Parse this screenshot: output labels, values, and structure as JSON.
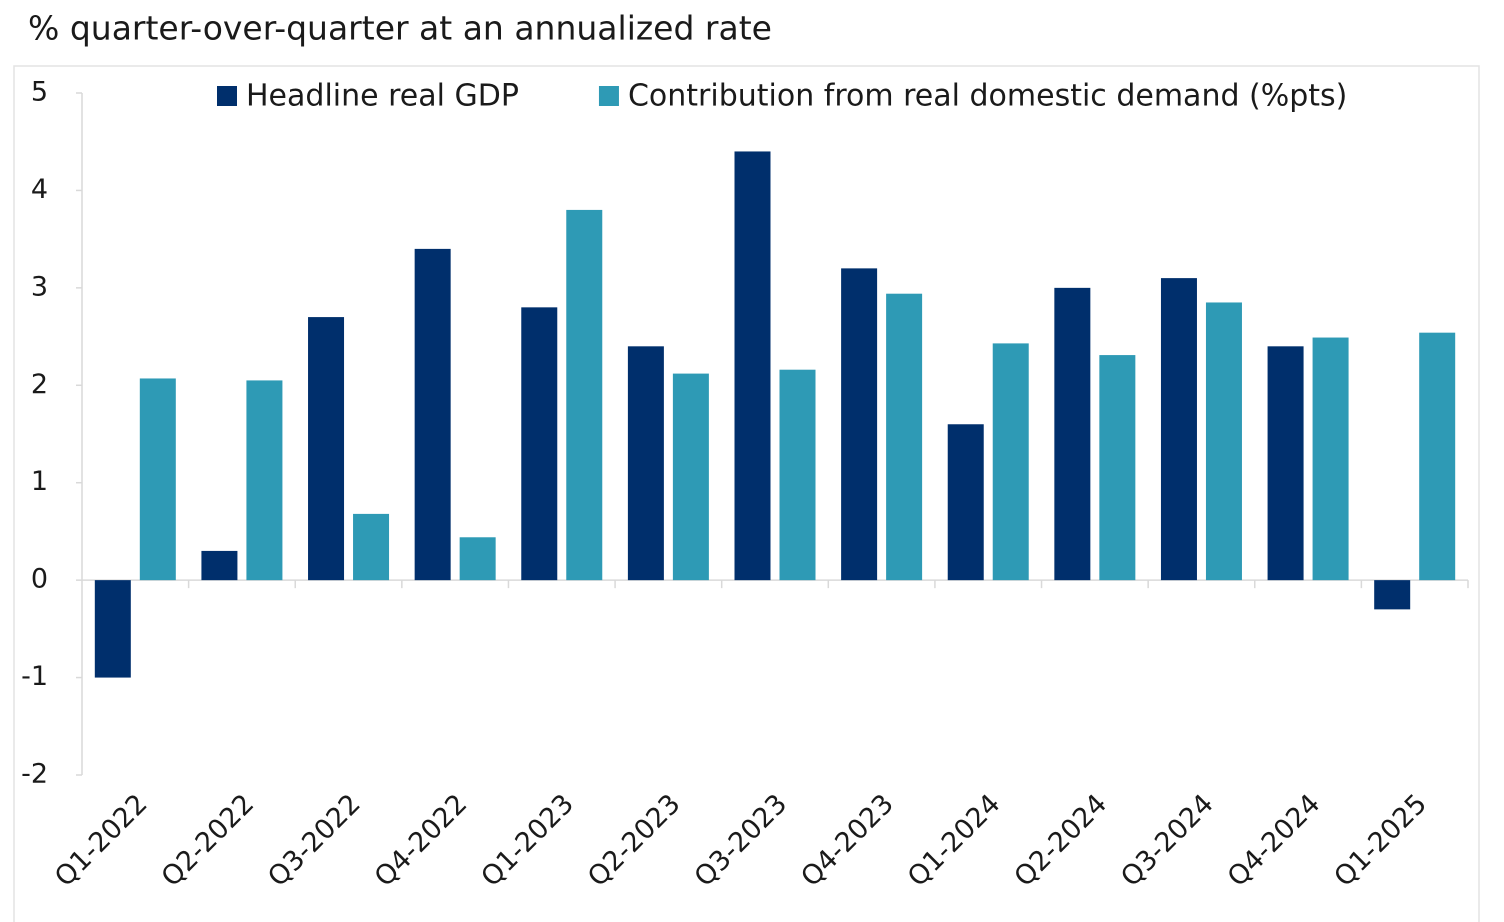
{
  "chart_data": {
    "type": "bar",
    "title": "% quarter-over-quarter at an annualized rate",
    "categories": [
      "Q1-2022",
      "Q2-2022",
      "Q3-2022",
      "Q4-2022",
      "Q1-2023",
      "Q2-2023",
      "Q3-2023",
      "Q4-2023",
      "Q1-2024",
      "Q2-2024",
      "Q3-2024",
      "Q4-2024",
      "Q1-2025"
    ],
    "series": [
      {
        "name": "Headline real GDP",
        "color": "#002f6c",
        "values": [
          -1.0,
          0.3,
          2.7,
          3.4,
          2.8,
          2.4,
          4.4,
          3.2,
          1.6,
          3.0,
          3.1,
          2.4,
          -0.3
        ]
      },
      {
        "name": "Contribution from real domestic demand (%pts)",
        "color": "#2e9ab5",
        "values": [
          2.07,
          2.05,
          0.68,
          0.44,
          3.8,
          2.12,
          2.16,
          2.94,
          2.43,
          2.31,
          2.85,
          2.49,
          2.54
        ]
      }
    ],
    "ylim": [
      -2,
      5
    ],
    "yticks": [
      -2,
      -1,
      0,
      1,
      2,
      3,
      4,
      5
    ],
    "grid": false,
    "legend": "top"
  }
}
